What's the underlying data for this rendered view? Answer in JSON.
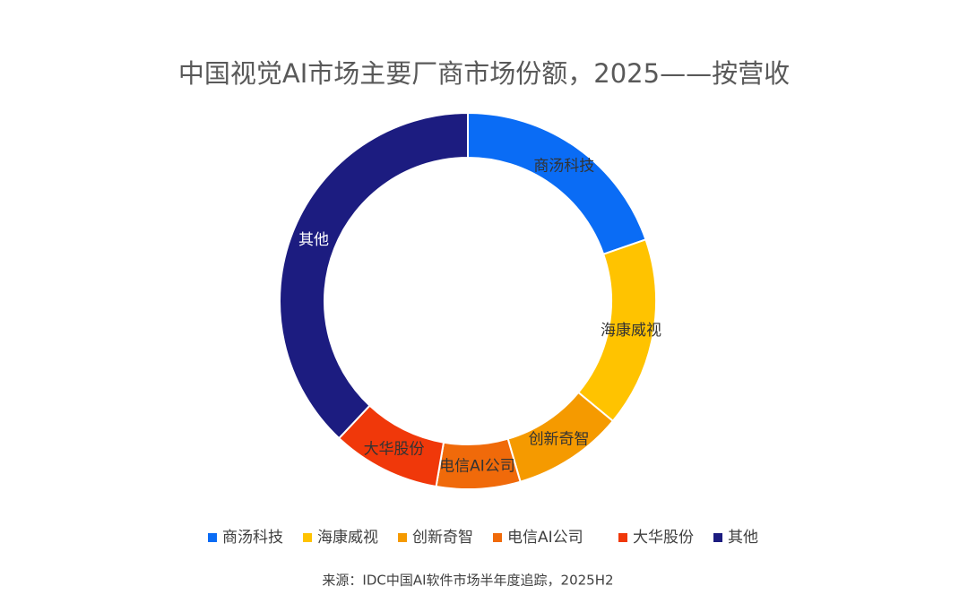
{
  "chart_data": {
    "type": "donut",
    "title": "中国视觉AI市场主要厂商市场份额，2025——按营收",
    "categories": [
      "商汤科技",
      "海康威视",
      "创新奇智",
      "电信AI公司",
      "大华股份",
      "其他"
    ],
    "values": [
      19.7,
      16.3,
      9.5,
      7.2,
      9.3,
      38.0
    ],
    "colors": [
      "#0a6cf5",
      "#ffc300",
      "#f59a00",
      "#f06a0a",
      "#f0380a",
      "#1c1c80"
    ],
    "label_colors": [
      "#333333",
      "#333333",
      "#333333",
      "#333333",
      "#333333",
      "#ffffff"
    ],
    "legend": "bottom",
    "source": "来源：IDC中国AI软件市场半年度追踪，2025H2"
  }
}
